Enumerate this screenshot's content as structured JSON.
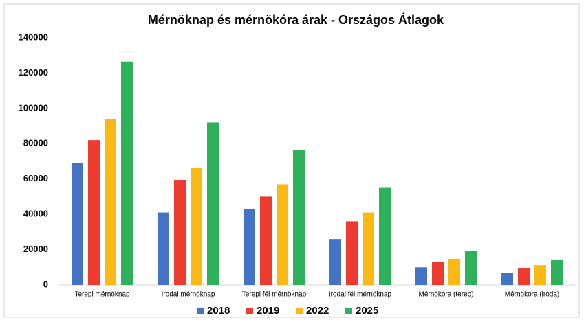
{
  "chart_data": {
    "type": "bar",
    "title": "Mérnöknap és mérnökóra árak - Országos Átlagok",
    "categories": [
      "Terepi mérnöknap",
      "Irodai mérnöknap",
      "Terepi fél mérnöknap",
      "Irodai fél mérnöknap",
      "Mérnökóra (terep)",
      "Mérnökóra (iroda)"
    ],
    "series": [
      {
        "name": "2018",
        "color": "#4472c4",
        "values": [
          69000,
          41000,
          42800,
          26000,
          10000,
          7000
        ]
      },
      {
        "name": "2019",
        "color": "#ee3b30",
        "values": [
          82000,
          59500,
          50000,
          36000,
          13000,
          9700
        ]
      },
      {
        "name": "2022",
        "color": "#fbb914",
        "values": [
          94000,
          66500,
          57000,
          41000,
          14800,
          11200
        ]
      },
      {
        "name": "2025",
        "color": "#2db15a",
        "values": [
          126500,
          92000,
          76500,
          55000,
          19400,
          14400
        ]
      }
    ],
    "ylim": [
      0,
      140000
    ],
    "yticks": [
      0,
      20000,
      40000,
      60000,
      80000,
      100000,
      120000,
      140000
    ],
    "legend": "bottom"
  }
}
